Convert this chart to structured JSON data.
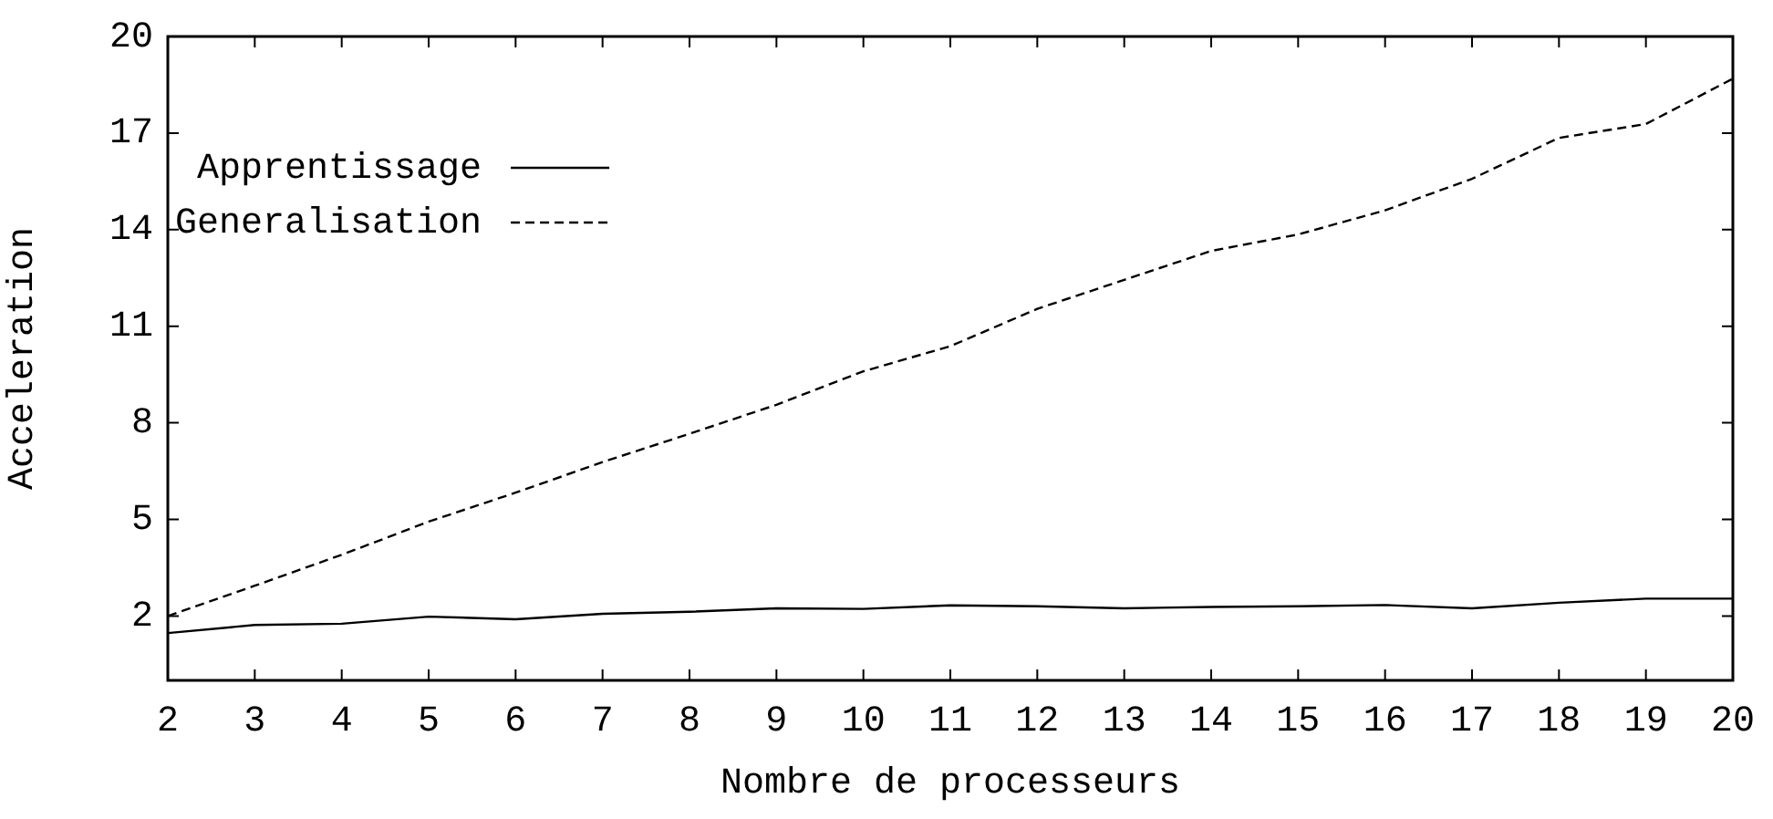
{
  "chart_data": {
    "type": "line",
    "xlabel": "Nombre de processeurs",
    "ylabel": "Acceleration",
    "x": [
      2,
      3,
      4,
      5,
      6,
      7,
      8,
      9,
      10,
      11,
      12,
      13,
      14,
      15,
      16,
      17,
      18,
      19,
      20
    ],
    "xlim": [
      2,
      20
    ],
    "xticks": [
      2,
      3,
      4,
      5,
      6,
      7,
      8,
      9,
      10,
      11,
      12,
      13,
      14,
      15,
      16,
      17,
      18,
      19,
      20
    ],
    "ylim": [
      0,
      20
    ],
    "yticks": [
      2,
      5,
      8,
      11,
      14,
      17,
      20
    ],
    "series": [
      {
        "name": "Apprentissage",
        "color": "#000000",
        "line_style": "solid",
        "values": [
          1.47,
          1.72,
          1.76,
          1.98,
          1.9,
          2.07,
          2.13,
          2.24,
          2.22,
          2.33,
          2.3,
          2.24,
          2.28,
          2.3,
          2.34,
          2.24,
          2.41,
          2.54,
          2.54
        ]
      },
      {
        "name": "Generalisation",
        "color": "#000000",
        "line_style": "dashed",
        "values": [
          2.0,
          2.94,
          3.9,
          4.93,
          5.83,
          6.78,
          7.66,
          8.56,
          9.6,
          10.38,
          11.54,
          12.44,
          13.34,
          13.85,
          14.6,
          15.58,
          16.85,
          17.28,
          18.69
        ]
      }
    ],
    "legend": "top left",
    "marker": "none",
    "grid": false
  }
}
